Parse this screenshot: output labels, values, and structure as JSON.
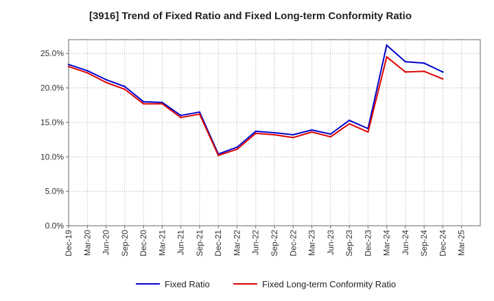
{
  "chart_data": {
    "type": "line",
    "title": "[3916]  Trend of Fixed Ratio and Fixed Long-term Conformity Ratio",
    "xlabel": "",
    "ylabel": "",
    "categories": [
      "Dec-19",
      "Mar-20",
      "Jun-20",
      "Sep-20",
      "Dec-20",
      "Mar-21",
      "Jun-21",
      "Sep-21",
      "Dec-21",
      "Mar-22",
      "Jun-22",
      "Sep-22",
      "Dec-22",
      "Mar-23",
      "Jun-23",
      "Sep-23",
      "Dec-23",
      "Mar-24",
      "Jun-24",
      "Sep-24",
      "Dec-24",
      "Mar-25"
    ],
    "y_ticks": [
      "0.0%",
      "5.0%",
      "10.0%",
      "15.0%",
      "20.0%",
      "25.0%"
    ],
    "ylim": [
      0,
      27
    ],
    "grid": true,
    "legend_position": "bottom",
    "series": [
      {
        "name": "Fixed Ratio",
        "color": "#0000cc",
        "values": [
          23.4,
          22.5,
          21.2,
          20.2,
          18.0,
          17.9,
          16.0,
          16.5,
          10.4,
          11.4,
          13.7,
          13.5,
          13.2,
          13.9,
          13.3,
          15.3,
          14.1,
          26.2,
          23.8,
          23.6,
          22.3,
          null
        ]
      },
      {
        "name": "Fixed Long-term Conformity Ratio",
        "color": "#dd0000",
        "values": [
          23.1,
          22.2,
          20.8,
          19.8,
          17.7,
          17.7,
          15.7,
          16.2,
          10.2,
          11.1,
          13.4,
          13.2,
          12.8,
          13.6,
          12.9,
          14.8,
          13.6,
          24.5,
          22.3,
          22.4,
          21.3,
          null
        ]
      }
    ]
  }
}
